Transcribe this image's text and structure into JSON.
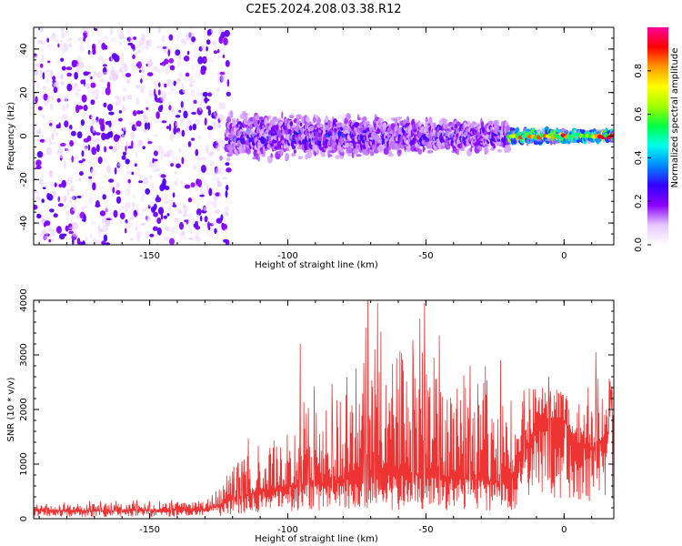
{
  "title": "C2E5.2024.208.03.38.R12",
  "chart_data": [
    {
      "type": "heatmap",
      "xlabel": "Height of straight line (km)",
      "ylabel": "Frequency (Hz)",
      "xlim": [
        -192,
        18
      ],
      "ylim": [
        -50,
        50
      ],
      "xticks": [
        -150,
        -100,
        -50,
        0
      ],
      "yticks": [
        40,
        20,
        0,
        -20,
        -40
      ],
      "colorbar": {
        "label": "Normalized spectral amplitude",
        "range": [
          0,
          1
        ],
        "ticks": [
          "0.0",
          "0.2",
          "0.4",
          "0.6",
          "0.8"
        ],
        "colors": [
          "#ffffff",
          "#e6c8ff",
          "#8a00ff",
          "#3300ff",
          "#0088ff",
          "#00ffee",
          "#00ff44",
          "#a0ff00",
          "#ffff00",
          "#ff9900",
          "#ff0000",
          "#ff0099"
        ]
      },
      "regions": [
        {
          "x": [
            -192,
            -122
          ],
          "description": "noise",
          "freq_spread": [
            -50,
            50
          ],
          "amplitude": [
            0.02,
            0.1
          ]
        },
        {
          "x": [
            -122,
            -20
          ],
          "center_freq": 0,
          "freq_halfwidth": [
            10,
            6
          ],
          "amplitude": [
            0.1,
            0.35
          ]
        },
        {
          "x": [
            -20,
            18
          ],
          "center_freq": 0,
          "freq_halfwidth": [
            3,
            2
          ],
          "amplitude": [
            0.3,
            0.95
          ]
        }
      ]
    },
    {
      "type": "line",
      "color": "#ee3333",
      "xlabel": "Height of straight line (km)",
      "ylabel": "SNR (10 * v/v)",
      "xlim": [
        -192,
        18
      ],
      "ylim": [
        0,
        4000
      ],
      "xticks": [
        -150,
        -100,
        -50,
        0
      ],
      "yticks": [
        0,
        1000,
        2000,
        3000,
        4000
      ],
      "envelope": {
        "x": [
          -192,
          -160,
          -130,
          -125,
          -118,
          -110,
          -100,
          -90,
          -80,
          -75,
          -70,
          -60,
          -50,
          -40,
          -30,
          -20,
          -10,
          -5,
          0,
          5,
          10,
          15,
          18
        ],
        "base": [
          150,
          150,
          170,
          250,
          400,
          500,
          600,
          650,
          700,
          750,
          800,
          800,
          800,
          750,
          700,
          650,
          1700,
          1850,
          1800,
          1400,
          1300,
          1500,
          1800
        ],
        "spread": [
          120,
          130,
          160,
          350,
          700,
          900,
          1000,
          1300,
          1600,
          2000,
          2200,
          2300,
          2300,
          2000,
          1900,
          1700,
          700,
          600,
          500,
          700,
          800,
          900,
          500
        ]
      },
      "peaks": [
        {
          "x": -71.0,
          "y": 4050
        },
        {
          "x": -67.5,
          "y": 3950
        },
        {
          "x": -50.5,
          "y": 3950
        },
        {
          "x": -71.8,
          "y": 3500
        },
        {
          "x": -95.5,
          "y": 3200
        },
        {
          "x": -68.5,
          "y": 3100
        },
        {
          "x": 11.5,
          "y": 3050
        },
        {
          "x": -23.0,
          "y": 2900
        },
        {
          "x": -34.0,
          "y": 2800
        },
        {
          "x": -72.5,
          "y": 2850
        }
      ]
    }
  ]
}
